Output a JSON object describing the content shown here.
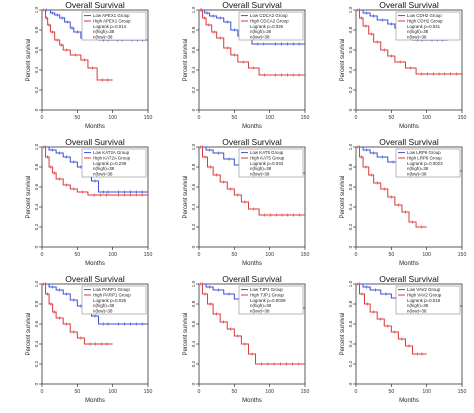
{
  "figure": {
    "background": "#ffffff"
  },
  "colors": {
    "low": "#3a4fd6",
    "high": "#d93a3a",
    "axis": "#333333"
  },
  "chart_data": [
    {
      "type": "line",
      "title": "Overall Survival",
      "xlabel": "Months",
      "ylabel": "Percent survival",
      "xlim": [
        0,
        150
      ],
      "ylim": [
        0,
        1
      ],
      "xticks": [
        0,
        50,
        100,
        150
      ],
      "yticks": [
        0,
        0.2,
        0.4,
        0.6,
        0.8,
        1.0
      ],
      "grid": false,
      "legend_position": "top-right",
      "legend": [
        "Low APEX1 Group",
        "High APEX1 Group",
        "Logrank p=0.014",
        "n(high)=38",
        "n(low)=38"
      ],
      "series": [
        {
          "name": "Low APEX1 Group",
          "color": "#3a4fd6",
          "x": [
            0,
            12,
            18,
            25,
            32,
            40,
            45,
            55,
            80,
            100,
            120,
            150
          ],
          "y": [
            1.0,
            0.97,
            0.95,
            0.92,
            0.88,
            0.82,
            0.78,
            0.72,
            0.7,
            0.7,
            0.7,
            0.7
          ]
        },
        {
          "name": "High APEX1 Group",
          "color": "#d93a3a",
          "x": [
            0,
            5,
            8,
            12,
            18,
            25,
            30,
            40,
            55,
            65,
            78,
            100
          ],
          "y": [
            1.0,
            0.92,
            0.85,
            0.78,
            0.7,
            0.65,
            0.6,
            0.55,
            0.5,
            0.42,
            0.3,
            0.3
          ]
        }
      ]
    },
    {
      "type": "line",
      "title": "Overall Survival",
      "xlabel": "Months",
      "ylabel": "Percent survival",
      "xlim": [
        0,
        150
      ],
      "ylim": [
        0,
        1
      ],
      "xticks": [
        0,
        50,
        100,
        150
      ],
      "yticks": [
        0,
        0.2,
        0.4,
        0.6,
        0.8,
        1.0
      ],
      "grid": false,
      "legend_position": "top-right",
      "legend": [
        "Low CDCA2 Group",
        "High CDCA2 Group",
        "Logrank p=0.026",
        "n(high)=38",
        "n(low)=38"
      ],
      "series": [
        {
          "name": "Low CDCA2 Group",
          "color": "#3a4fd6",
          "x": [
            0,
            8,
            15,
            25,
            35,
            45,
            55,
            75,
            100,
            150
          ],
          "y": [
            1.0,
            0.97,
            0.94,
            0.92,
            0.88,
            0.8,
            0.74,
            0.66,
            0.66,
            0.66
          ]
        },
        {
          "name": "High CDCA2 Group",
          "color": "#d93a3a",
          "x": [
            0,
            5,
            10,
            18,
            25,
            35,
            45,
            55,
            70,
            85,
            100,
            150
          ],
          "y": [
            1.0,
            0.92,
            0.85,
            0.78,
            0.72,
            0.62,
            0.55,
            0.48,
            0.42,
            0.35,
            0.35,
            0.35
          ]
        }
      ]
    },
    {
      "type": "line",
      "title": "Overall Survival",
      "xlabel": "Months",
      "ylabel": "Percent survival",
      "xlim": [
        0,
        150
      ],
      "ylim": [
        0,
        1
      ],
      "xticks": [
        0,
        50,
        100,
        150
      ],
      "yticks": [
        0,
        0.2,
        0.4,
        0.6,
        0.8,
        1.0
      ],
      "grid": false,
      "legend_position": "top-right",
      "legend": [
        "Low CDH2 Group",
        "High CDH2 Group",
        "Logrank p=0.041",
        "n(high)=38",
        "n(low)=38"
      ],
      "series": [
        {
          "name": "Low CDH2 Group",
          "color": "#3a4fd6",
          "x": [
            0,
            10,
            20,
            30,
            45,
            55,
            70,
            80,
            100,
            130
          ],
          "y": [
            1.0,
            0.97,
            0.94,
            0.9,
            0.86,
            0.82,
            0.76,
            0.7,
            0.7,
            0.7
          ]
        },
        {
          "name": "High CDH2 Group",
          "color": "#d93a3a",
          "x": [
            0,
            5,
            10,
            18,
            25,
            35,
            45,
            55,
            70,
            85,
            150
          ],
          "y": [
            1.0,
            0.92,
            0.84,
            0.76,
            0.68,
            0.6,
            0.54,
            0.48,
            0.42,
            0.36,
            0.36
          ]
        }
      ]
    },
    {
      "type": "line",
      "title": "Overall Survival",
      "xlabel": "Months",
      "ylabel": "Percent survival",
      "xlim": [
        0,
        150
      ],
      "ylim": [
        0,
        1
      ],
      "xticks": [
        0,
        50,
        100,
        150
      ],
      "yticks": [
        0,
        0.2,
        0.4,
        0.6,
        0.8,
        1.0
      ],
      "grid": false,
      "legend_position": "top-right",
      "legend": [
        "Low KAT2A Group",
        "High KAT2A Group",
        "Logrank p=0.239",
        "n(high)=38",
        "n(low)=38"
      ],
      "series": [
        {
          "name": "Low KAT2A Group",
          "color": "#3a4fd6",
          "x": [
            0,
            10,
            20,
            30,
            40,
            50,
            60,
            70,
            80,
            100,
            150
          ],
          "y": [
            1.0,
            0.97,
            0.94,
            0.9,
            0.85,
            0.8,
            0.74,
            0.66,
            0.55,
            0.55,
            0.55
          ]
        },
        {
          "name": "High KAT2A Group",
          "color": "#d93a3a",
          "x": [
            0,
            5,
            10,
            15,
            20,
            30,
            40,
            50,
            65,
            100,
            150
          ],
          "y": [
            1.0,
            0.9,
            0.8,
            0.74,
            0.68,
            0.62,
            0.58,
            0.55,
            0.52,
            0.52,
            0.52
          ]
        }
      ]
    },
    {
      "type": "line",
      "title": "Overall Survival",
      "xlabel": "Months",
      "ylabel": "Percent survival",
      "xlim": [
        0,
        150
      ],
      "ylim": [
        0,
        1
      ],
      "xticks": [
        0,
        50,
        100,
        150
      ],
      "yticks": [
        0,
        0.2,
        0.4,
        0.6,
        0.8,
        1.0
      ],
      "grid": false,
      "legend_position": "top-right",
      "legend": [
        "Low KAT5 Group",
        "High KAT5 Group",
        "Logrank p=0.033",
        "n(high)=38",
        "n(low)=38"
      ],
      "series": [
        {
          "name": "Low KAT5 Group",
          "color": "#3a4fd6",
          "x": [
            0,
            10,
            20,
            35,
            50,
            65,
            80,
            100,
            150
          ],
          "y": [
            1.0,
            0.97,
            0.94,
            0.88,
            0.82,
            0.78,
            0.74,
            0.74,
            0.74
          ]
        },
        {
          "name": "High KAT5 Group",
          "color": "#d93a3a",
          "x": [
            0,
            5,
            12,
            20,
            30,
            40,
            50,
            60,
            70,
            85,
            150
          ],
          "y": [
            1.0,
            0.9,
            0.8,
            0.72,
            0.65,
            0.58,
            0.52,
            0.45,
            0.38,
            0.32,
            0.32
          ]
        }
      ]
    },
    {
      "type": "line",
      "title": "Overall Survival",
      "xlabel": "Months",
      "ylabel": "Percent survival",
      "xlim": [
        0,
        150
      ],
      "ylim": [
        0,
        1
      ],
      "xticks": [
        0,
        50,
        100,
        150
      ],
      "yticks": [
        0,
        0.2,
        0.4,
        0.6,
        0.8,
        1.0
      ],
      "grid": false,
      "legend_position": "top-right",
      "legend": [
        "Low LRP6 Group",
        "High LRP6 Group",
        "Logrank p=0.0023",
        "n(high)=38",
        "n(low)=38"
      ],
      "series": [
        {
          "name": "Low LRP6 Group",
          "color": "#3a4fd6",
          "x": [
            0,
            10,
            20,
            30,
            45,
            60,
            80,
            100,
            150
          ],
          "y": [
            1.0,
            0.97,
            0.94,
            0.9,
            0.85,
            0.8,
            0.76,
            0.76,
            0.76
          ]
        },
        {
          "name": "High LRP6 Group",
          "color": "#d93a3a",
          "x": [
            0,
            5,
            10,
            18,
            25,
            35,
            45,
            55,
            65,
            75,
            85,
            100
          ],
          "y": [
            1.0,
            0.9,
            0.8,
            0.72,
            0.64,
            0.58,
            0.5,
            0.42,
            0.35,
            0.25,
            0.2,
            0.2
          ]
        }
      ]
    },
    {
      "type": "line",
      "title": "Overall Survival",
      "xlabel": "Months",
      "ylabel": "Percent survival",
      "xlim": [
        0,
        150
      ],
      "ylim": [
        0,
        1
      ],
      "xticks": [
        0,
        50,
        100,
        150
      ],
      "yticks": [
        0,
        0.2,
        0.4,
        0.6,
        0.8,
        1.0
      ],
      "grid": false,
      "legend_position": "top-right",
      "legend": [
        "Low PARP1 Group",
        "High PARP1 Group",
        "Logrank p=0.026",
        "n(high)=38",
        "n(low)=38"
      ],
      "series": [
        {
          "name": "Low PARP1 Group",
          "color": "#3a4fd6",
          "x": [
            0,
            10,
            20,
            30,
            40,
            50,
            60,
            70,
            80,
            100,
            150
          ],
          "y": [
            1.0,
            0.97,
            0.94,
            0.9,
            0.84,
            0.78,
            0.74,
            0.68,
            0.6,
            0.6,
            0.6
          ]
        },
        {
          "name": "High PARP1 Group",
          "color": "#d93a3a",
          "x": [
            0,
            5,
            10,
            15,
            20,
            30,
            40,
            50,
            60,
            100
          ],
          "y": [
            1.0,
            0.9,
            0.8,
            0.72,
            0.66,
            0.6,
            0.52,
            0.46,
            0.4,
            0.4
          ]
        }
      ]
    },
    {
      "type": "line",
      "title": "Overall Survival",
      "xlabel": "Months",
      "ylabel": "Percent survival",
      "xlim": [
        0,
        150
      ],
      "ylim": [
        0,
        1
      ],
      "xticks": [
        0,
        50,
        100,
        150
      ],
      "yticks": [
        0,
        0.2,
        0.4,
        0.6,
        0.8,
        1.0
      ],
      "grid": false,
      "legend_position": "top-right",
      "legend": [
        "Low TJP1 Group",
        "High TJP1 Group",
        "Logrank p=0.0039",
        "n(high)=38",
        "n(low)=38"
      ],
      "series": [
        {
          "name": "Low TJP1 Group",
          "color": "#3a4fd6",
          "x": [
            0,
            10,
            20,
            35,
            50,
            65,
            80,
            100,
            150
          ],
          "y": [
            1.0,
            0.97,
            0.94,
            0.9,
            0.85,
            0.8,
            0.76,
            0.76,
            0.76
          ]
        },
        {
          "name": "High TJP1 Group",
          "color": "#d93a3a",
          "x": [
            0,
            5,
            12,
            20,
            30,
            40,
            50,
            60,
            70,
            80,
            150
          ],
          "y": [
            1.0,
            0.9,
            0.8,
            0.7,
            0.62,
            0.55,
            0.48,
            0.4,
            0.3,
            0.2,
            0.2
          ]
        }
      ]
    },
    {
      "type": "line",
      "title": "Overall Survival",
      "xlabel": "Months",
      "ylabel": "Percent survival",
      "xlim": [
        0,
        150
      ],
      "ylim": [
        0,
        1
      ],
      "xticks": [
        0,
        50,
        100,
        150
      ],
      "yticks": [
        0,
        0.2,
        0.4,
        0.6,
        0.8,
        1.0
      ],
      "grid": false,
      "legend_position": "top-right",
      "legend": [
        "Low VAV2 Group",
        "High VAV2 Group",
        "Logrank p=0.018",
        "n(high)=38",
        "n(low)=38"
      ],
      "series": [
        {
          "name": "Low VAV2 Group",
          "color": "#3a4fd6",
          "x": [
            0,
            10,
            20,
            35,
            50,
            65,
            80,
            100,
            150
          ],
          "y": [
            1.0,
            0.97,
            0.94,
            0.9,
            0.86,
            0.82,
            0.78,
            0.78,
            0.78
          ]
        },
        {
          "name": "High VAV2 Group",
          "color": "#d93a3a",
          "x": [
            0,
            5,
            12,
            20,
            30,
            40,
            50,
            60,
            70,
            80,
            100
          ],
          "y": [
            1.0,
            0.9,
            0.8,
            0.72,
            0.65,
            0.58,
            0.52,
            0.45,
            0.38,
            0.3,
            0.3
          ]
        }
      ]
    }
  ]
}
